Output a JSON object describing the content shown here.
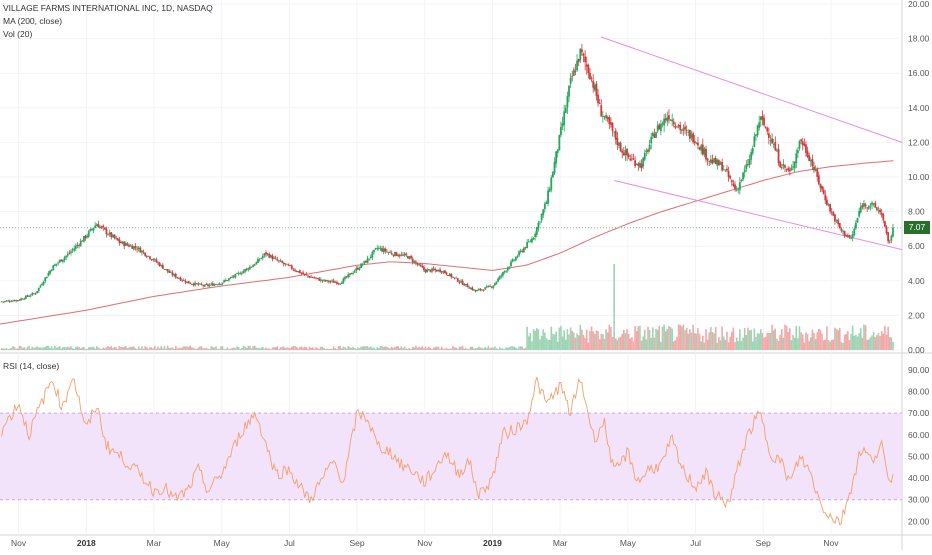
{
  "header": {
    "symbol_line": "VILLAGE FARMS INTERNATIONAL INC, 1D, NASDAQ",
    "ma_line": "MA (200, close)",
    "vol_line": "Vol (20)",
    "rsi_line": "RSI (14, close)"
  },
  "last_price": "7.07",
  "colors": {
    "up": "#26a65b",
    "down": "#d03a3a",
    "ma": "#e06e6e",
    "channel": "#e58de5",
    "rsi_line": "#f2a06a",
    "rsi_band": "#f2e3fb",
    "price_tag": "#26702a"
  },
  "chart_data": [
    {
      "type": "candlestick",
      "title": "VILLAGE FARMS INTERNATIONAL INC, 1D, NASDAQ",
      "y_ticks": [
        "0.00",
        "2.00",
        "4.00",
        "6.00",
        "8.00",
        "10.00",
        "12.00",
        "14.00",
        "16.00",
        "18.00",
        "20.00"
      ],
      "ylim": [
        0,
        20
      ],
      "x_ticks": [
        "Nov",
        "2018",
        "Mar",
        "May",
        "Jul",
        "Sep",
        "Nov",
        "2019",
        "Mar",
        "May",
        "Jul",
        "Sep",
        "Nov"
      ],
      "x_tick_months": [
        0,
        2,
        4,
        6,
        8,
        10,
        12,
        14,
        16,
        18,
        20,
        22,
        24
      ],
      "xlim_months": [
        -0.55,
        26.1
      ],
      "close_anchors_months": [
        [
          -0.5,
          2.8
        ],
        [
          0,
          2.9
        ],
        [
          0.5,
          3.3
        ],
        [
          1,
          4.8
        ],
        [
          1.5,
          5.6
        ],
        [
          2,
          6.6
        ],
        [
          2.3,
          7.3
        ],
        [
          2.6,
          6.8
        ],
        [
          3,
          6.2
        ],
        [
          3.5,
          5.9
        ],
        [
          4,
          5.2
        ],
        [
          4.5,
          4.4
        ],
        [
          5,
          3.9
        ],
        [
          5.5,
          3.7
        ],
        [
          6,
          3.9
        ],
        [
          6.5,
          4.4
        ],
        [
          7,
          5.0
        ],
        [
          7.3,
          5.6
        ],
        [
          7.6,
          5.2
        ],
        [
          8,
          4.8
        ],
        [
          8.5,
          4.3
        ],
        [
          9,
          4.0
        ],
        [
          9.5,
          3.9
        ],
        [
          10,
          4.7
        ],
        [
          10.3,
          5.2
        ],
        [
          10.6,
          5.9
        ],
        [
          11,
          5.6
        ],
        [
          11.5,
          5.4
        ],
        [
          12,
          4.6
        ],
        [
          12.5,
          4.6
        ],
        [
          13,
          4.0
        ],
        [
          13.5,
          3.4
        ],
        [
          14,
          3.7
        ],
        [
          14.5,
          4.9
        ],
        [
          14.8,
          5.6
        ],
        [
          15.2,
          6.5
        ],
        [
          15.6,
          8.6
        ],
        [
          16,
          12.4
        ],
        [
          16.3,
          15.4
        ],
        [
          16.6,
          17.2
        ],
        [
          16.9,
          15.9
        ],
        [
          17.2,
          13.8
        ],
        [
          17.5,
          12.8
        ],
        [
          17.8,
          11.6
        ],
        [
          18.1,
          11.0
        ],
        [
          18.4,
          10.7
        ],
        [
          18.8,
          12.6
        ],
        [
          19.2,
          13.6
        ],
        [
          19.6,
          12.7
        ],
        [
          20,
          12.2
        ],
        [
          20.4,
          11.0
        ],
        [
          20.8,
          10.6
        ],
        [
          21.2,
          9.2
        ],
        [
          21.6,
          11.0
        ],
        [
          21.9,
          13.4
        ],
        [
          22.2,
          12.4
        ],
        [
          22.5,
          10.8
        ],
        [
          22.8,
          10.2
        ],
        [
          23.1,
          12.2
        ],
        [
          23.4,
          11.0
        ],
        [
          23.7,
          9.4
        ],
        [
          24,
          8.0
        ],
        [
          24.3,
          6.9
        ],
        [
          24.6,
          6.4
        ],
        [
          24.9,
          8.4
        ],
        [
          25.2,
          8.4
        ],
        [
          25.5,
          7.9
        ],
        [
          25.7,
          6.1
        ],
        [
          25.85,
          7.07
        ]
      ],
      "ma_200_anchors_months": [
        [
          -0.55,
          1.5
        ],
        [
          2,
          2.3
        ],
        [
          4,
          3.1
        ],
        [
          6,
          3.7
        ],
        [
          8,
          4.2
        ],
        [
          10,
          4.9
        ],
        [
          11,
          5.1
        ],
        [
          12,
          5.0
        ],
        [
          13,
          4.8
        ],
        [
          14,
          4.6
        ],
        [
          15,
          4.9
        ],
        [
          16,
          5.6
        ],
        [
          17,
          6.5
        ],
        [
          18,
          7.3
        ],
        [
          19,
          8.0
        ],
        [
          20,
          8.6
        ],
        [
          21,
          9.2
        ],
        [
          22,
          9.8
        ],
        [
          23,
          10.3
        ],
        [
          24,
          10.6
        ],
        [
          25,
          10.8
        ],
        [
          25.9,
          10.95
        ]
      ],
      "channel_lines": [
        {
          "from": [
            17.2,
            18.1
          ],
          "to": [
            26.1,
            12.0
          ]
        },
        {
          "from": [
            17.6,
            9.8
          ],
          "to": [
            26.1,
            5.8
          ]
        }
      ],
      "volume_ylim_fraction": 0.1,
      "volume_spike": {
        "month": 17.6,
        "relative": 1.0
      }
    },
    {
      "type": "line",
      "title": "RSI (14, close)",
      "y_ticks": [
        "20.00",
        "30.00",
        "40.00",
        "50.00",
        "60.00",
        "70.00",
        "80.00",
        "90.00"
      ],
      "ylim": [
        16,
        95
      ],
      "band": [
        30,
        70
      ],
      "rsi_anchors_months": [
        [
          -0.5,
          62
        ],
        [
          0,
          75
        ],
        [
          0.3,
          60
        ],
        [
          0.6,
          72
        ],
        [
          1,
          86
        ],
        [
          1.3,
          72
        ],
        [
          1.6,
          88
        ],
        [
          2,
          62
        ],
        [
          2.3,
          74
        ],
        [
          2.6,
          55
        ],
        [
          3,
          50
        ],
        [
          3.3,
          46
        ],
        [
          3.7,
          40
        ],
        [
          4,
          34
        ],
        [
          4.3,
          36
        ],
        [
          4.6,
          30
        ],
        [
          5,
          34
        ],
        [
          5.3,
          44
        ],
        [
          5.6,
          34
        ],
        [
          6,
          42
        ],
        [
          6.3,
          52
        ],
        [
          6.6,
          62
        ],
        [
          7,
          70
        ],
        [
          7.3,
          56
        ],
        [
          7.6,
          42
        ],
        [
          8,
          44
        ],
        [
          8.3,
          36
        ],
        [
          8.6,
          30
        ],
        [
          9,
          40
        ],
        [
          9.3,
          48
        ],
        [
          9.6,
          38
        ],
        [
          10,
          70
        ],
        [
          10.3,
          68
        ],
        [
          10.6,
          55
        ],
        [
          11,
          52
        ],
        [
          11.3,
          46
        ],
        [
          11.6,
          44
        ],
        [
          12,
          38
        ],
        [
          12.3,
          44
        ],
        [
          12.6,
          52
        ],
        [
          13,
          42
        ],
        [
          13.3,
          48
        ],
        [
          13.6,
          32
        ],
        [
          14,
          40
        ],
        [
          14.3,
          60
        ],
        [
          14.6,
          62
        ],
        [
          15,
          66
        ],
        [
          15.3,
          85
        ],
        [
          15.6,
          74
        ],
        [
          16,
          83
        ],
        [
          16.3,
          70
        ],
        [
          16.6,
          86
        ],
        [
          17,
          58
        ],
        [
          17.3,
          66
        ],
        [
          17.6,
          42
        ],
        [
          18,
          52
        ],
        [
          18.3,
          38
        ],
        [
          18.6,
          44
        ],
        [
          19,
          46
        ],
        [
          19.3,
          58
        ],
        [
          19.6,
          44
        ],
        [
          20,
          36
        ],
        [
          20.3,
          42
        ],
        [
          20.6,
          32
        ],
        [
          21,
          28
        ],
        [
          21.3,
          48
        ],
        [
          21.6,
          62
        ],
        [
          21.9,
          70
        ],
        [
          22.2,
          52
        ],
        [
          22.5,
          48
        ],
        [
          22.8,
          38
        ],
        [
          23.1,
          50
        ],
        [
          23.4,
          42
        ],
        [
          23.7,
          28
        ],
        [
          24,
          22
        ],
        [
          24.3,
          20
        ],
        [
          24.6,
          36
        ],
        [
          24.9,
          54
        ],
        [
          25.2,
          48
        ],
        [
          25.5,
          56
        ],
        [
          25.7,
          36
        ],
        [
          25.85,
          44
        ]
      ]
    }
  ]
}
